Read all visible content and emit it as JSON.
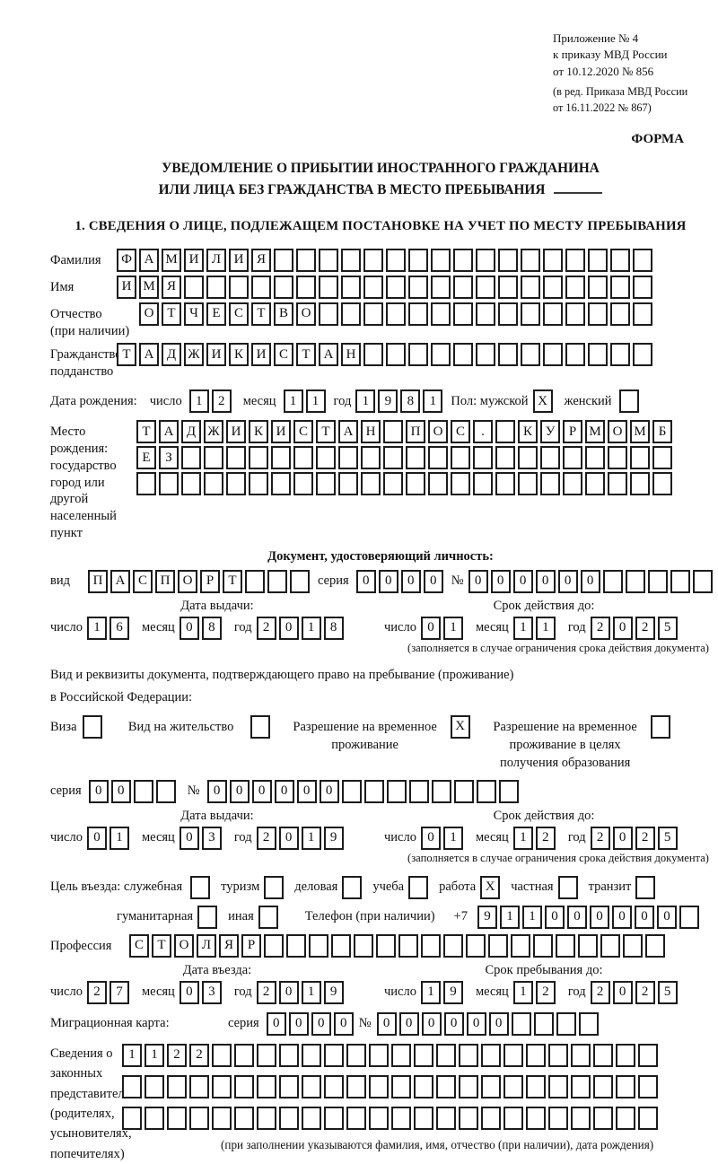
{
  "meta": {
    "appendix": "Приложение № 4",
    "order_line1": "к приказу МВД России",
    "order_line2": "от 10.12.2020 № 856",
    "revision_line1": "(в ред. Приказа МВД России",
    "revision_line2": "от 16.11.2022 № 867)",
    "form_label": "ФОРМА"
  },
  "title": {
    "line1": "УВЕДОМЛЕНИЕ О ПРИБЫТИИ ИНОСТРАННОГО ГРАЖДАНИНА",
    "line2": "ИЛИ ЛИЦА БЕЗ ГРАЖДАНСТВА В МЕСТО ПРЕБЫВАНИЯ"
  },
  "section1_heading": "1. СВЕДЕНИЯ О ЛИЦЕ, ПОДЛЕЖАЩЕМ ПОСТАНОВКЕ НА УЧЕТ ПО МЕСТУ ПРЕБЫВАНИЯ",
  "labels": {
    "day": "число",
    "month": "месяц",
    "year": "год",
    "series": "серия",
    "number": "№",
    "doc_kind": "вид"
  },
  "person": {
    "surname": {
      "label": "Фамилия",
      "value": {
        "text": "ФАМИЛИЯ",
        "len": 24
      }
    },
    "given_name": {
      "label": "Имя",
      "value": {
        "text": "ИМЯ",
        "len": 24
      }
    },
    "patronymic": {
      "label_line1": "Отчество",
      "label_line2": "(при наличии)",
      "value": {
        "text": "ОТЧЕСТВО",
        "len": 23
      }
    },
    "citizenship": {
      "label_line1": "Гражданство,",
      "label_line2": "подданство",
      "value": {
        "text": "ТАДЖИКИСТАН",
        "len": 24
      }
    },
    "birth_date": {
      "label": "Дата рождения:",
      "day": "12",
      "month": "11",
      "year": "1981"
    },
    "sex": {
      "label": "Пол: мужской",
      "male_value": "X",
      "female_label": "женский",
      "female_value": ""
    },
    "birth_place": {
      "label_line1": "Место рождения:",
      "label_line2": "государство",
      "label_line3": "город или другой",
      "label_line4": "населенный пункт",
      "row1": {
        "text": "ТАДЖИКИСТАН ПОС. КУРМОМБ",
        "len": 24
      },
      "row2": {
        "text": "ЕЗ",
        "len": 24
      },
      "row3": {
        "text": "",
        "len": 24
      }
    }
  },
  "identity_doc": {
    "heading": "Документ, удостоверяющий личность:",
    "kind": {
      "text": "ПАСПОРТ",
      "len": 10
    },
    "series": {
      "text": "0000",
      "len": 4
    },
    "number": {
      "text": "000000",
      "len": 11
    },
    "issue": {
      "heading": "Дата выдачи:",
      "day": "16",
      "month": "08",
      "year": "2018"
    },
    "valid": {
      "heading": "Срок действия до:",
      "day": "01",
      "month": "11",
      "year": "2025"
    },
    "note": "(заполняется в случае ограничения срока действия документа)"
  },
  "residence_doc": {
    "intro_line1": "Вид и реквизиты документа, подтверждающего право на пребывание (проживание)",
    "intro_line2": "в Российской Федерации:",
    "options": [
      {
        "label": "Виза",
        "value": ""
      },
      {
        "label": "Вид на жительство",
        "value": ""
      },
      {
        "label": "Разрешение на временное проживание",
        "value": "X"
      },
      {
        "label": "Разрешение на временное проживание в целях получения образования",
        "value": ""
      }
    ],
    "series": {
      "text": "00",
      "len": 4
    },
    "number": {
      "text": "000000",
      "len": 14
    },
    "issue": {
      "heading": "Дата выдачи:",
      "day": "01",
      "month": "03",
      "year": "2019"
    },
    "valid": {
      "heading": "Срок действия до:",
      "day": "01",
      "month": "12",
      "year": "2025"
    },
    "note": "(заполняется в случае ограничения срока действия документа)"
  },
  "visit": {
    "purpose_label": "Цель въезда: служебная",
    "options_row1": [
      {
        "label": "туризм",
        "value": ""
      },
      {
        "label": "деловая",
        "value": ""
      },
      {
        "label": "учеба",
        "value": ""
      },
      {
        "label": "работа",
        "value": "X"
      },
      {
        "label": "частная",
        "value": ""
      },
      {
        "label": "транзит",
        "value": ""
      }
    ],
    "purpose_first_value": "",
    "options_row2": [
      {
        "label": "гуманитарная",
        "value": ""
      },
      {
        "label": "иная",
        "value": ""
      }
    ],
    "phone_label": "Телефон (при наличии)",
    "phone_prefix": "+7",
    "phone": {
      "text": "911000000",
      "len": 10
    },
    "profession_label": "Профессия",
    "profession": {
      "text": "СТОЛЯР",
      "len": 24
    },
    "entry": {
      "heading": "Дата въезда:",
      "day": "27",
      "month": "03",
      "year": "2019"
    },
    "stay": {
      "heading": "Срок пребывания до:",
      "day": "19",
      "month": "12",
      "year": "2025"
    }
  },
  "migration_card": {
    "label": "Миграционная карта:",
    "series": {
      "text": "0000",
      "len": 4
    },
    "number": {
      "text": "000000",
      "len": 10
    }
  },
  "representatives": {
    "label_lines": [
      "Сведения о",
      "законных",
      "представителях",
      "(родителях,",
      "усыновителях,",
      "попечителях)"
    ],
    "row1": {
      "text": "1122",
      "len": 24
    },
    "row2": {
      "text": "",
      "len": 24
    },
    "row3": {
      "text": "",
      "len": 24
    },
    "caption": "(при заполнении указываются фамилия, имя, отчество (при наличии), дата рождения)"
  }
}
